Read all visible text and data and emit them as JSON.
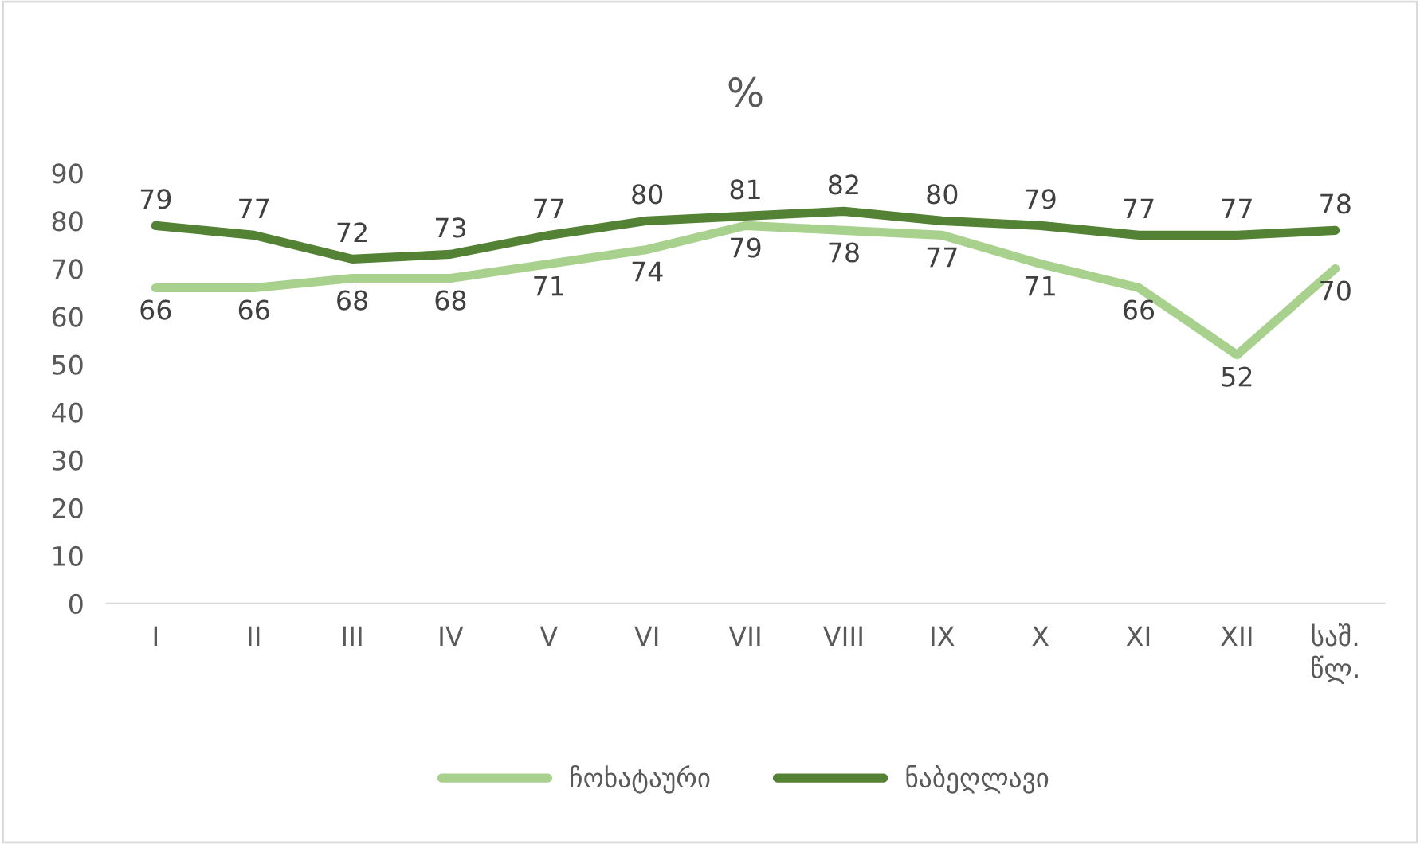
{
  "chart_data": {
    "type": "line",
    "title": "%",
    "categories": [
      "I",
      "II",
      "III",
      "IV",
      "V",
      "VI",
      "VII",
      "VIII",
      "IX",
      "X",
      "XI",
      "XII",
      "საშ.\nწლ."
    ],
    "series": [
      {
        "name": "ჩოხატაური",
        "color": "#a9d18e",
        "values": [
          66,
          66,
          68,
          68,
          71,
          74,
          79,
          78,
          77,
          71,
          66,
          52,
          70
        ]
      },
      {
        "name": "ნაბეღლავი",
        "color": "#548235",
        "values": [
          79,
          77,
          72,
          73,
          77,
          80,
          81,
          82,
          80,
          79,
          77,
          77,
          78
        ]
      }
    ],
    "ylim": [
      0,
      90
    ],
    "yticks": [
      0,
      10,
      20,
      30,
      40,
      50,
      60,
      70,
      80,
      90
    ],
    "grid": false,
    "legend": "bottom",
    "data_labels": true,
    "marker": "none",
    "line_style": "solid"
  }
}
